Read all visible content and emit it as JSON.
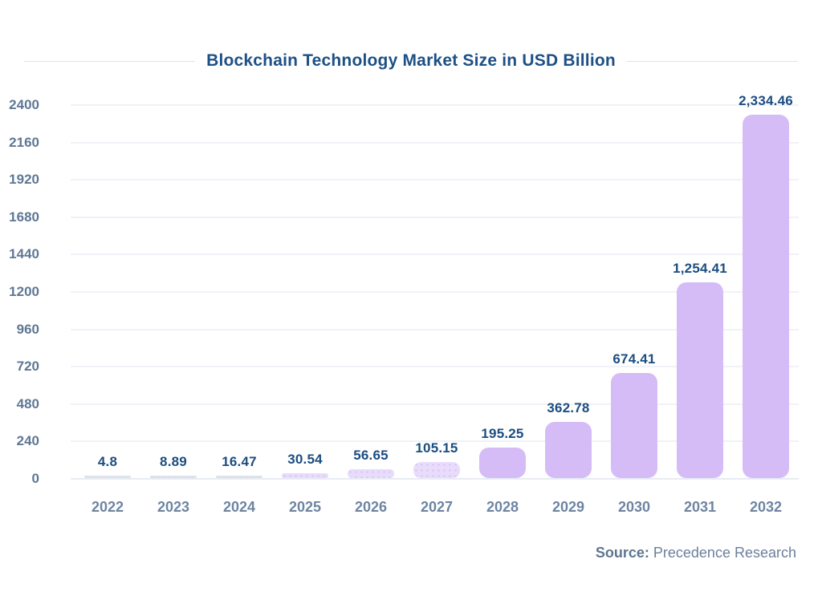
{
  "title": "Blockchain Technology Market Size in USD Billion",
  "source": {
    "label": "Source:",
    "value": "Precedence Research"
  },
  "colors": {
    "title_text": "#1d5086",
    "value_label_text": "#1c4d80",
    "axis_tick_text": "#5f7795",
    "x_label_text": "#6e84a1",
    "gridline": "#eff2f8",
    "title_rule": "#dbe3ee",
    "background": "#ffffff"
  },
  "chart_data": {
    "type": "bar",
    "title": "Blockchain Technology Market Size in USD Billion",
    "xlabel": "",
    "ylabel": "",
    "ylim": [
      0,
      2400
    ],
    "yticks": [
      0,
      240,
      480,
      720,
      960,
      1200,
      1440,
      1680,
      1920,
      2160,
      2400
    ],
    "grid": true,
    "legend": false,
    "categories": [
      "2022",
      "2023",
      "2024",
      "2025",
      "2026",
      "2027",
      "2028",
      "2029",
      "2030",
      "2031",
      "2032"
    ],
    "values": [
      4.8,
      8.89,
      16.47,
      30.54,
      56.65,
      105.15,
      195.25,
      362.78,
      674.41,
      1254.41,
      2334.46
    ],
    "value_labels": [
      "4.8",
      "8.89",
      "16.47",
      "30.54",
      "56.65",
      "105.15",
      "195.25",
      "362.78",
      "674.41",
      "1,254.41",
      "2,334.46"
    ],
    "bar_style_keys": [
      "gray-solid",
      "gray-dotted",
      "gray-dotted",
      "purple-dotted",
      "purple-dotted",
      "purple-dotted",
      "purple-solid",
      "purple-solid",
      "purple-solid",
      "purple-solid",
      "purple-solid"
    ],
    "styles": {
      "gray-solid": {
        "fill": "#dde2eb",
        "dots": null
      },
      "gray-dotted": {
        "fill": "#dde2eb",
        "dots": "#ccd3e1"
      },
      "purple-dotted": {
        "fill": "#e9dcfb",
        "dots": "#d7c2f6"
      },
      "purple-solid": {
        "fill": "#d5bcf7",
        "dots": null
      }
    },
    "source": "Source: Precedence Research"
  }
}
